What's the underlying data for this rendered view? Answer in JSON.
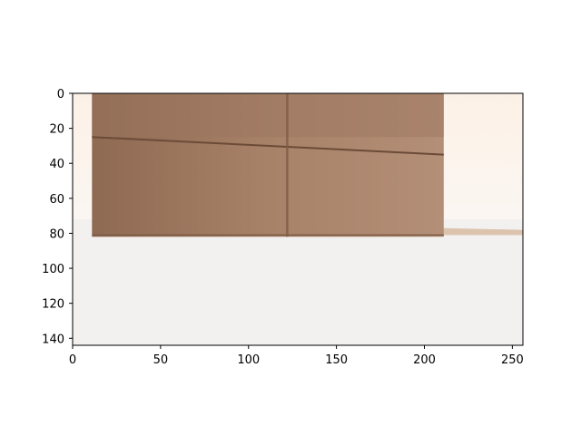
{
  "chart_data": {
    "type": "image",
    "title": "",
    "xlabel": "",
    "ylabel": "",
    "xlim": [
      0,
      256
    ],
    "ylim": [
      144,
      0
    ],
    "x_ticks": [
      0,
      50,
      100,
      150,
      200,
      250
    ],
    "y_ticks": [
      0,
      20,
      40,
      60,
      80,
      100,
      120,
      140
    ],
    "x_tick_labels": [
      "0",
      "50",
      "100",
      "150",
      "200",
      "250"
    ],
    "y_tick_labels": [
      "0",
      "20",
      "40",
      "60",
      "80",
      "100",
      "120",
      "140"
    ],
    "grid": false,
    "colors": {
      "box_light": "#b5917a",
      "box_dark": "#8f6a52",
      "box_seam": "#6b4b37",
      "wall": "#fbf3ec",
      "floor": "#f3f1f0"
    }
  }
}
